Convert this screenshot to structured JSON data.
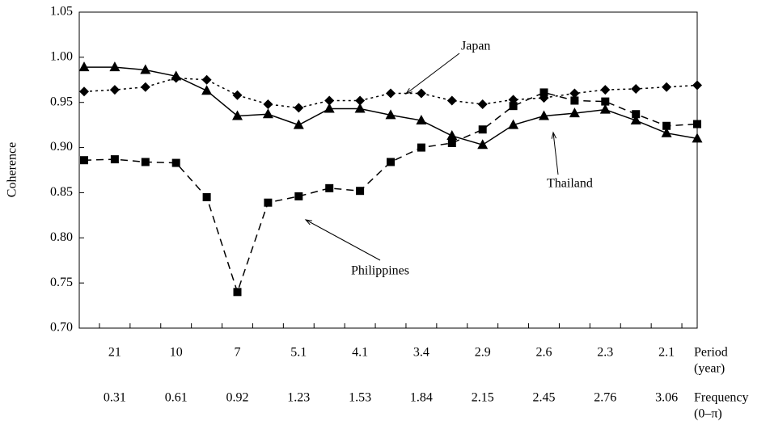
{
  "chart_data": {
    "type": "line",
    "y_label": "Coherence",
    "categories": [
      null,
      "21",
      null,
      "10",
      null,
      "7",
      null,
      "5.1",
      null,
      "4.1",
      null,
      "3.4",
      null,
      "2.9",
      null,
      "2.6",
      null,
      "2.3",
      null,
      "2.1",
      null
    ],
    "frequency_labels": [
      null,
      "0.31",
      null,
      "0.61",
      null,
      "0.92",
      null,
      "1.23",
      null,
      "1.53",
      null,
      "1.84",
      null,
      "2.15",
      null,
      "2.45",
      null,
      "2.76",
      null,
      "3.06",
      null
    ],
    "period_row_label": [
      "Period",
      "(year)"
    ],
    "frequency_row_label": [
      "Frequency",
      "(0–π)"
    ],
    "ylim": [
      0.7,
      1.05
    ],
    "yticks": [
      {
        "value": 0.7,
        "label": "0.70"
      },
      0.75,
      {
        "value": 0.8,
        "label": "0.80"
      },
      0.85,
      {
        "value": 0.9,
        "label": "0.90"
      },
      0.95,
      {
        "value": 1.0,
        "label": "1.00"
      },
      1.05
    ],
    "series": [
      {
        "name": "Japan",
        "color": "#000000",
        "dash": "dotted",
        "marker": "diamond",
        "values": [
          0.962,
          0.964,
          0.967,
          0.977,
          0.975,
          0.958,
          0.948,
          0.944,
          0.952,
          0.952,
          0.96,
          0.96,
          0.952,
          0.948,
          0.953,
          0.955,
          0.96,
          0.964,
          0.965,
          0.967,
          0.969
        ]
      },
      {
        "name": "Thailand",
        "color": "#000000",
        "dash": "solid",
        "marker": "triangle",
        "values": [
          0.989,
          0.989,
          0.986,
          0.979,
          0.963,
          0.935,
          0.937,
          0.925,
          0.943,
          0.943,
          0.936,
          0.93,
          0.913,
          0.903,
          0.925,
          0.935,
          0.938,
          0.942,
          0.93,
          0.916,
          0.91
        ]
      },
      {
        "name": "Philippines",
        "color": "#000000",
        "dash": "dashed",
        "marker": "square",
        "values": [
          0.886,
          0.887,
          0.884,
          0.883,
          0.845,
          0.74,
          0.839,
          0.846,
          0.855,
          0.852,
          0.884,
          0.9,
          0.905,
          0.92,
          0.946,
          0.961,
          0.952,
          0.951,
          0.937,
          0.924,
          0.926
        ]
      }
    ]
  }
}
